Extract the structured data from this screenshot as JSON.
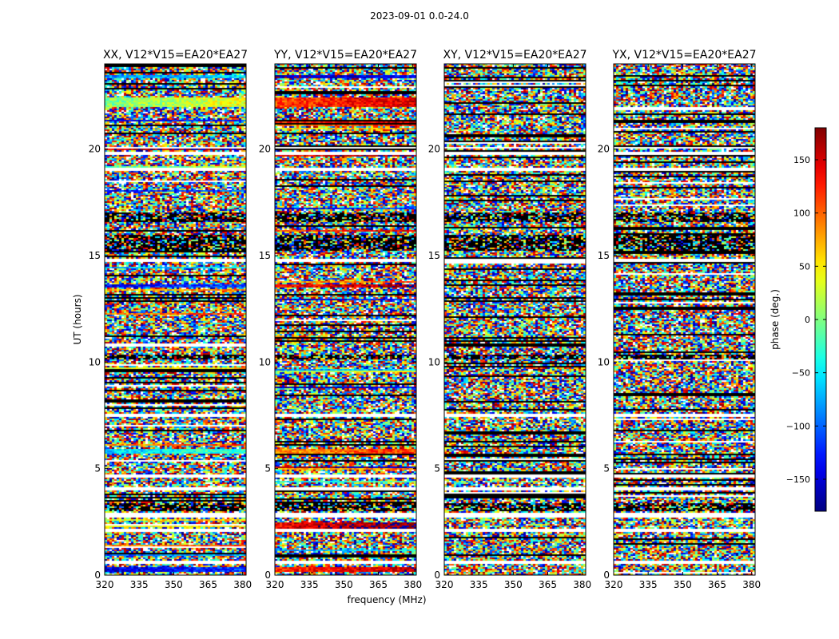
{
  "figure_title": "2023-09-01 0.0-24.0",
  "chart_data": {
    "type": "heatmap",
    "panels": [
      {
        "title": "XX, V12*V15=EA20*EA27",
        "pol": "XX"
      },
      {
        "title": "YY, V12*V15=EA20*EA27",
        "pol": "YY"
      },
      {
        "title": "XY, V12*V15=EA20*EA27",
        "pol": "XY"
      },
      {
        "title": "YX, V12*V15=EA20*EA27",
        "pol": "YX"
      }
    ],
    "xlabel": "frequency (MHz)",
    "ylabel": "UT (hours)",
    "xlim": [
      320,
      381.5
    ],
    "ylim": [
      0,
      24
    ],
    "xticks": [
      320,
      335,
      350,
      365,
      380
    ],
    "yticks": [
      0,
      5,
      10,
      15,
      20
    ],
    "colorbar": {
      "label": "phase (deg.)",
      "range": [
        -180,
        180
      ],
      "ticks": [
        150,
        100,
        50,
        0,
        -50,
        -100,
        -150
      ],
      "tick_labels": [
        "150",
        "100",
        "50",
        "0",
        "−50",
        "−100",
        "−150"
      ],
      "colormap": "jet"
    },
    "flagged_bands_hours": [
      [
        0.55,
        0.65
      ],
      [
        2.05,
        2.2
      ],
      [
        2.7,
        2.95
      ],
      [
        3.95,
        4.1
      ],
      [
        4.55,
        4.7
      ],
      [
        7.45,
        7.55
      ],
      [
        14.7,
        14.85
      ],
      [
        18.95,
        19.1
      ],
      [
        19.75,
        19.85
      ],
      [
        20.0,
        20.1
      ]
    ],
    "dark_bands_hours": [
      [
        3.0,
        3.4
      ],
      [
        10.1,
        10.35
      ],
      [
        15.2,
        16.0
      ],
      [
        16.6,
        17.0
      ]
    ],
    "coherent_bands": [
      {
        "panel": 0,
        "ut": [
          0.15,
          0.35
        ],
        "phase": -150
      },
      {
        "panel": 1,
        "ut": [
          0.15,
          0.35
        ],
        "phase": 120
      },
      {
        "panel": 1,
        "ut": [
          2.2,
          2.45
        ],
        "phase": 140
      },
      {
        "panel": 0,
        "ut": [
          5.7,
          5.9
        ],
        "phase": -60
      },
      {
        "panel": 1,
        "ut": [
          5.7,
          5.9
        ],
        "phase": 80
      },
      {
        "panel": 0,
        "ut": [
          13.5,
          13.65
        ],
        "phase": -140
      },
      {
        "panel": 1,
        "ut": [
          13.5,
          13.65
        ],
        "phase": 130
      },
      {
        "panel": 0,
        "ut": [
          22.0,
          22.45
        ],
        "phase": 0
      },
      {
        "panel": 1,
        "ut": [
          22.0,
          22.45
        ],
        "phase": 110
      },
      {
        "panel": 0,
        "ut": [
          23.35,
          23.5
        ],
        "phase": -90
      },
      {
        "panel": 1,
        "ut": [
          23.35,
          23.5
        ],
        "phase": -170
      }
    ]
  }
}
